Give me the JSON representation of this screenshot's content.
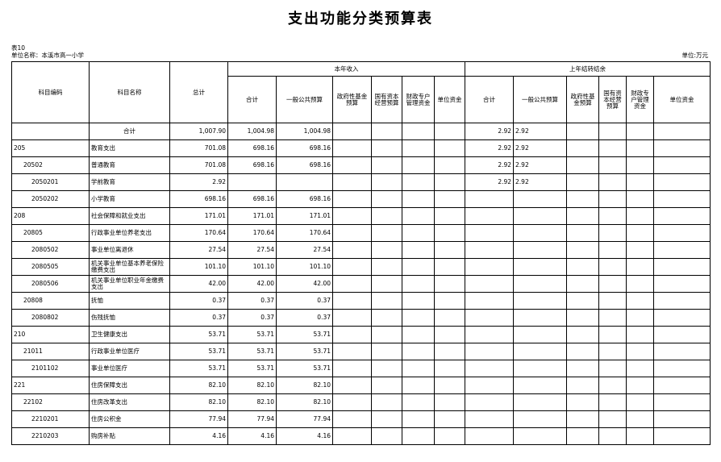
{
  "title": "支出功能分类预算表",
  "table_no": "表10",
  "unit_label": "单位名称：本溪市高一小学",
  "currency": "单位:万元",
  "headers": {
    "code": "科目编码",
    "name": "科目名称",
    "total": "总计",
    "current_year": "本年收入",
    "carryover": "上年结转结余",
    "subtotal": "合计",
    "general_public": "一般公共预算",
    "gov_fund": "政府性基金预算",
    "state_capital": "国有资本经营预算",
    "fiscal_special": "财政专户管理资金",
    "unit_funds": "单位资金",
    "c_subtotal": "合计",
    "c_general_public": "一般公共预算",
    "c_gov_fund": "政府性基金预算",
    "c_state_capital": "国有资本经营预算",
    "c_fiscal_special": "财政专户管理资金",
    "c_unit_funds": "单位资金"
  },
  "rows": [
    {
      "code": "",
      "name": "合计",
      "total": "1,007.90",
      "sub": "1,004.98",
      "gp": "1,004.98",
      "csub": "2.92",
      "cgp": "2.92",
      "level": 0,
      "center_name": true
    },
    {
      "code": "205",
      "name": "教育支出",
      "total": "701.08",
      "sub": "698.16",
      "gp": "698.16",
      "csub": "2.92",
      "cgp": "2.92",
      "level": 0
    },
    {
      "code": "20502",
      "name": "普通教育",
      "total": "701.08",
      "sub": "698.16",
      "gp": "698.16",
      "csub": "2.92",
      "cgp": "2.92",
      "level": 1
    },
    {
      "code": "2050201",
      "name": "学前教育",
      "total": "2.92",
      "sub": "",
      "gp": "",
      "csub": "2.92",
      "cgp": "2.92",
      "level": 2
    },
    {
      "code": "2050202",
      "name": "小学教育",
      "total": "698.16",
      "sub": "698.16",
      "gp": "698.16",
      "csub": "",
      "cgp": "",
      "level": 2
    },
    {
      "code": "208",
      "name": "社会保障和就业支出",
      "total": "171.01",
      "sub": "171.01",
      "gp": "171.01",
      "csub": "",
      "cgp": "",
      "level": 0
    },
    {
      "code": "20805",
      "name": "行政事业单位养老支出",
      "total": "170.64",
      "sub": "170.64",
      "gp": "170.64",
      "csub": "",
      "cgp": "",
      "level": 1
    },
    {
      "code": "2080502",
      "name": "事业单位离退休",
      "total": "27.54",
      "sub": "27.54",
      "gp": "27.54",
      "csub": "",
      "cgp": "",
      "level": 2
    },
    {
      "code": "2080505",
      "name": "机关事业单位基本养老保险缴费支出",
      "total": "101.10",
      "sub": "101.10",
      "gp": "101.10",
      "csub": "",
      "cgp": "",
      "level": 2
    },
    {
      "code": "2080506",
      "name": "机关事业单位职业年金缴费支出",
      "total": "42.00",
      "sub": "42.00",
      "gp": "42.00",
      "csub": "",
      "cgp": "",
      "level": 2
    },
    {
      "code": "20808",
      "name": "抚恤",
      "total": "0.37",
      "sub": "0.37",
      "gp": "0.37",
      "csub": "",
      "cgp": "",
      "level": 1
    },
    {
      "code": "2080802",
      "name": "伤残抚恤",
      "total": "0.37",
      "sub": "0.37",
      "gp": "0.37",
      "csub": "",
      "cgp": "",
      "level": 2
    },
    {
      "code": "210",
      "name": "卫生健康支出",
      "total": "53.71",
      "sub": "53.71",
      "gp": "53.71",
      "csub": "",
      "cgp": "",
      "level": 0
    },
    {
      "code": "21011",
      "name": "行政事业单位医疗",
      "total": "53.71",
      "sub": "53.71",
      "gp": "53.71",
      "csub": "",
      "cgp": "",
      "level": 1
    },
    {
      "code": "2101102",
      "name": "事业单位医疗",
      "total": "53.71",
      "sub": "53.71",
      "gp": "53.71",
      "csub": "",
      "cgp": "",
      "level": 2
    },
    {
      "code": "221",
      "name": "住房保障支出",
      "total": "82.10",
      "sub": "82.10",
      "gp": "82.10",
      "csub": "",
      "cgp": "",
      "level": 0
    },
    {
      "code": "22102",
      "name": "住房改革支出",
      "total": "82.10",
      "sub": "82.10",
      "gp": "82.10",
      "csub": "",
      "cgp": "",
      "level": 1
    },
    {
      "code": "2210201",
      "name": "住房公积金",
      "total": "77.94",
      "sub": "77.94",
      "gp": "77.94",
      "csub": "",
      "cgp": "",
      "level": 2
    },
    {
      "code": "2210203",
      "name": "购房补贴",
      "total": "4.16",
      "sub": "4.16",
      "gp": "4.16",
      "csub": "",
      "cgp": "",
      "level": 2
    }
  ]
}
